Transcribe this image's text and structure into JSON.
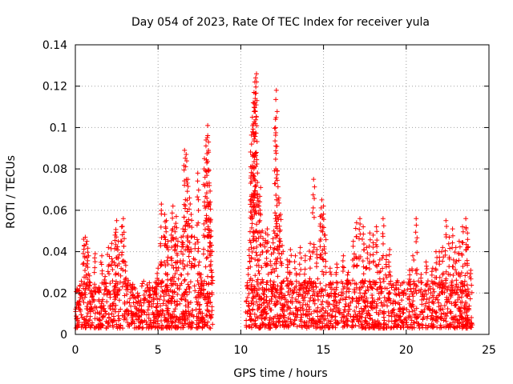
{
  "chart_data": {
    "type": "scatter",
    "title": "Day 054 of 2023, Rate Of TEC Index for receiver yula",
    "xlabel": "GPS time / hours",
    "ylabel": "ROTI / TECUs",
    "xlim": [
      0,
      25
    ],
    "ylim": [
      0,
      0.14
    ],
    "x_ticks": [
      0,
      5,
      10,
      15,
      20,
      25
    ],
    "x_tick_labels": [
      "0",
      "5",
      "10",
      "15",
      "20",
      "25"
    ],
    "y_ticks": [
      0,
      0.02,
      0.04,
      0.06,
      0.08,
      0.1,
      0.12,
      0.14
    ],
    "y_tick_labels": [
      "0",
      "0.02",
      "0.04",
      "0.06",
      "0.08",
      "0.1",
      "0.12",
      "0.14"
    ],
    "grid": true,
    "marker": "+",
    "series": [
      {
        "name": "ROTI",
        "color": "#ff0000",
        "data_gap_hours": [
          8.3,
          10.3
        ],
        "points": [
          [
            0.1,
            0.022
          ],
          [
            0.2,
            0.015
          ],
          [
            0.3,
            0.012
          ],
          [
            0.4,
            0.019
          ],
          [
            0.5,
            0.046
          ],
          [
            0.6,
            0.047
          ],
          [
            0.7,
            0.045
          ],
          [
            0.8,
            0.038
          ],
          [
            0.9,
            0.025
          ],
          [
            1.0,
            0.018
          ],
          [
            1.2,
            0.039
          ],
          [
            1.4,
            0.021
          ],
          [
            1.6,
            0.038
          ],
          [
            1.8,
            0.028
          ],
          [
            2.0,
            0.042
          ],
          [
            2.2,
            0.044
          ],
          [
            2.4,
            0.048
          ],
          [
            2.5,
            0.055
          ],
          [
            2.6,
            0.045
          ],
          [
            2.8,
            0.052
          ],
          [
            2.9,
            0.056
          ],
          [
            3.0,
            0.035
          ],
          [
            3.2,
            0.026
          ],
          [
            3.5,
            0.018
          ],
          [
            3.8,
            0.016
          ],
          [
            4.0,
            0.012
          ],
          [
            4.2,
            0.017
          ],
          [
            4.5,
            0.018
          ],
          [
            4.8,
            0.021
          ],
          [
            5.0,
            0.032
          ],
          [
            5.2,
            0.063
          ],
          [
            5.4,
            0.058
          ],
          [
            5.5,
            0.055
          ],
          [
            5.6,
            0.045
          ],
          [
            5.8,
            0.048
          ],
          [
            5.9,
            0.062
          ],
          [
            6.0,
            0.052
          ],
          [
            6.1,
            0.057
          ],
          [
            6.2,
            0.045
          ],
          [
            6.4,
            0.047
          ],
          [
            6.5,
            0.051
          ],
          [
            6.6,
            0.089
          ],
          [
            6.7,
            0.087
          ],
          [
            6.8,
            0.075
          ],
          [
            6.9,
            0.066
          ],
          [
            7.0,
            0.058
          ],
          [
            7.2,
            0.047
          ],
          [
            7.4,
            0.078
          ],
          [
            7.5,
            0.035
          ],
          [
            7.6,
            0.029
          ],
          [
            7.8,
            0.085
          ],
          [
            7.9,
            0.094
          ],
          [
            8.0,
            0.101
          ],
          [
            8.05,
            0.093
          ],
          [
            8.1,
            0.072
          ],
          [
            8.15,
            0.064
          ],
          [
            8.2,
            0.05
          ],
          [
            8.25,
            0.03
          ],
          [
            10.4,
            0.025
          ],
          [
            10.5,
            0.041
          ],
          [
            10.6,
            0.081
          ],
          [
            10.65,
            0.092
          ],
          [
            10.7,
            0.105
          ],
          [
            10.75,
            0.112
          ],
          [
            10.8,
            0.117
          ],
          [
            10.85,
            0.122
          ],
          [
            10.9,
            0.124
          ],
          [
            10.95,
            0.126
          ],
          [
            11.0,
            0.068
          ],
          [
            11.1,
            0.062
          ],
          [
            11.2,
            0.071
          ],
          [
            11.3,
            0.05
          ],
          [
            11.5,
            0.049
          ],
          [
            11.6,
            0.051
          ],
          [
            11.8,
            0.042
          ],
          [
            12.0,
            0.05
          ],
          [
            12.1,
            0.104
          ],
          [
            12.15,
            0.118
          ],
          [
            12.2,
            0.079
          ],
          [
            12.3,
            0.066
          ],
          [
            12.4,
            0.058
          ],
          [
            12.5,
            0.043
          ],
          [
            12.8,
            0.036
          ],
          [
            13.0,
            0.041
          ],
          [
            13.3,
            0.038
          ],
          [
            13.6,
            0.042
          ],
          [
            13.9,
            0.038
          ],
          [
            14.2,
            0.044
          ],
          [
            14.4,
            0.075
          ],
          [
            14.6,
            0.041
          ],
          [
            14.8,
            0.057
          ],
          [
            14.9,
            0.065
          ],
          [
            15.0,
            0.062
          ],
          [
            15.1,
            0.048
          ],
          [
            15.4,
            0.032
          ],
          [
            15.8,
            0.034
          ],
          [
            16.2,
            0.038
          ],
          [
            16.5,
            0.03
          ],
          [
            16.8,
            0.045
          ],
          [
            17.0,
            0.054
          ],
          [
            17.2,
            0.056
          ],
          [
            17.4,
            0.052
          ],
          [
            17.6,
            0.042
          ],
          [
            17.8,
            0.049
          ],
          [
            18.0,
            0.048
          ],
          [
            18.2,
            0.052
          ],
          [
            18.4,
            0.036
          ],
          [
            18.6,
            0.056
          ],
          [
            18.8,
            0.038
          ],
          [
            19.0,
            0.041
          ],
          [
            19.4,
            0.025
          ],
          [
            19.8,
            0.02
          ],
          [
            20.2,
            0.031
          ],
          [
            20.4,
            0.038
          ],
          [
            20.6,
            0.056
          ],
          [
            20.9,
            0.029
          ],
          [
            21.2,
            0.035
          ],
          [
            21.6,
            0.032
          ],
          [
            21.8,
            0.04
          ],
          [
            22.0,
            0.04
          ],
          [
            22.2,
            0.042
          ],
          [
            22.4,
            0.055
          ],
          [
            22.6,
            0.047
          ],
          [
            22.8,
            0.051
          ],
          [
            23.0,
            0.042
          ],
          [
            23.2,
            0.045
          ],
          [
            23.4,
            0.052
          ],
          [
            23.6,
            0.056
          ],
          [
            23.7,
            0.049
          ],
          [
            23.9,
            0.031
          ]
        ],
        "baseline_band": [
          {
            "from": 0.0,
            "to": 8.3,
            "min": 0.003,
            "max": 0.026
          },
          {
            "from": 10.3,
            "to": 24.0,
            "min": 0.003,
            "max": 0.026
          }
        ]
      }
    ]
  }
}
